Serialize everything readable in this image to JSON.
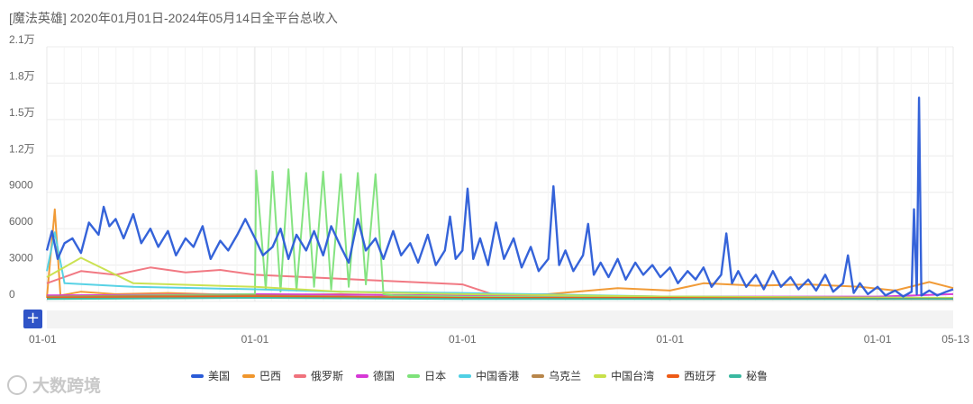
{
  "title": "[魔法英雄]  2020年01月01日-2024年05月14日全平台总收入",
  "watermark": "大数跨境",
  "zoom_button": "+",
  "chart_data": {
    "type": "line",
    "title": "[魔法英雄]  2020年01月01日-2024年05月14日全平台总收入",
    "x_range": [
      "2020-01-01",
      "2024-05-13"
    ],
    "x_ticks": [
      {
        "date": "2020-01-01",
        "label": "01-01"
      },
      {
        "date": "2021-01-01",
        "label": "01-01"
      },
      {
        "date": "2022-01-01",
        "label": "01-01"
      },
      {
        "date": "2023-01-01",
        "label": "01-01"
      },
      {
        "date": "2024-01-01",
        "label": "01-01"
      },
      {
        "date": "2024-05-13",
        "label": "05-13"
      }
    ],
    "y_ticks": [
      {
        "value": 0,
        "label": "0"
      },
      {
        "value": 3000,
        "label": "3000"
      },
      {
        "value": 6000,
        "label": "6000"
      },
      {
        "value": 9000,
        "label": "9000"
      },
      {
        "value": 12000,
        "label": "1.2万"
      },
      {
        "value": 15000,
        "label": "1.5万"
      },
      {
        "value": 18000,
        "label": "1.8万"
      },
      {
        "value": 21000,
        "label": "2.1万"
      }
    ],
    "ylim": [
      0,
      21000
    ],
    "grid": true,
    "legend_position": "bottom",
    "series": [
      {
        "name": "美国",
        "color": "#2a5bd7",
        "points": [
          [
            "2020-01-01",
            4200
          ],
          [
            "2020-01-10",
            5800
          ],
          [
            "2020-01-20",
            3500
          ],
          [
            "2020-02-01",
            4800
          ],
          [
            "2020-02-15",
            5200
          ],
          [
            "2020-03-01",
            4000
          ],
          [
            "2020-03-15",
            6500
          ],
          [
            "2020-04-01",
            5500
          ],
          [
            "2020-04-10",
            7800
          ],
          [
            "2020-04-20",
            6200
          ],
          [
            "2020-05-01",
            6800
          ],
          [
            "2020-05-15",
            5200
          ],
          [
            "2020-06-01",
            7200
          ],
          [
            "2020-06-15",
            4800
          ],
          [
            "2020-07-01",
            6000
          ],
          [
            "2020-07-15",
            4500
          ],
          [
            "2020-08-01",
            5800
          ],
          [
            "2020-08-15",
            3800
          ],
          [
            "2020-09-01",
            5200
          ],
          [
            "2020-09-15",
            4500
          ],
          [
            "2020-10-01",
            6200
          ],
          [
            "2020-10-15",
            3500
          ],
          [
            "2020-11-01",
            5000
          ],
          [
            "2020-11-15",
            4200
          ],
          [
            "2020-12-01",
            5500
          ],
          [
            "2020-12-15",
            6800
          ],
          [
            "2021-01-01",
            5200
          ],
          [
            "2021-01-15",
            3800
          ],
          [
            "2021-02-01",
            4500
          ],
          [
            "2021-02-15",
            6000
          ],
          [
            "2021-03-01",
            3500
          ],
          [
            "2021-03-15",
            5500
          ],
          [
            "2021-04-01",
            4200
          ],
          [
            "2021-04-15",
            5800
          ],
          [
            "2021-05-01",
            3800
          ],
          [
            "2021-05-15",
            6200
          ],
          [
            "2021-06-01",
            4500
          ],
          [
            "2021-06-15",
            3200
          ],
          [
            "2021-07-01",
            6800
          ],
          [
            "2021-07-15",
            4200
          ],
          [
            "2021-08-01",
            5200
          ],
          [
            "2021-08-15",
            3500
          ],
          [
            "2021-09-01",
            5800
          ],
          [
            "2021-09-15",
            3800
          ],
          [
            "2021-10-01",
            4800
          ],
          [
            "2021-10-15",
            3200
          ],
          [
            "2021-11-01",
            5500
          ],
          [
            "2021-11-15",
            3000
          ],
          [
            "2021-12-01",
            4200
          ],
          [
            "2021-12-10",
            7000
          ],
          [
            "2021-12-20",
            3500
          ],
          [
            "2022-01-01",
            4200
          ],
          [
            "2022-01-10",
            9300
          ],
          [
            "2022-01-20",
            3500
          ],
          [
            "2022-02-01",
            5200
          ],
          [
            "2022-02-15",
            3000
          ],
          [
            "2022-03-01",
            6500
          ],
          [
            "2022-03-15",
            3500
          ],
          [
            "2022-04-01",
            5200
          ],
          [
            "2022-04-15",
            2800
          ],
          [
            "2022-05-01",
            4500
          ],
          [
            "2022-05-15",
            2500
          ],
          [
            "2022-06-01",
            3500
          ],
          [
            "2022-06-10",
            9500
          ],
          [
            "2022-06-20",
            3000
          ],
          [
            "2022-07-01",
            4200
          ],
          [
            "2022-07-15",
            2500
          ],
          [
            "2022-08-01",
            3800
          ],
          [
            "2022-08-10",
            6400
          ],
          [
            "2022-08-20",
            2200
          ],
          [
            "2022-09-01",
            3200
          ],
          [
            "2022-09-15",
            2000
          ],
          [
            "2022-10-01",
            3500
          ],
          [
            "2022-10-15",
            1800
          ],
          [
            "2022-11-01",
            3200
          ],
          [
            "2022-11-15",
            2200
          ],
          [
            "2022-12-01",
            3000
          ],
          [
            "2022-12-15",
            2000
          ],
          [
            "2023-01-01",
            2800
          ],
          [
            "2023-01-15",
            1500
          ],
          [
            "2023-02-01",
            2500
          ],
          [
            "2023-02-15",
            1800
          ],
          [
            "2023-03-01",
            2800
          ],
          [
            "2023-03-15",
            1200
          ],
          [
            "2023-04-01",
            2200
          ],
          [
            "2023-04-10",
            5600
          ],
          [
            "2023-04-20",
            1500
          ],
          [
            "2023-05-01",
            2500
          ],
          [
            "2023-05-15",
            1200
          ],
          [
            "2023-06-01",
            2200
          ],
          [
            "2023-06-15",
            1000
          ],
          [
            "2023-07-01",
            2500
          ],
          [
            "2023-07-15",
            1200
          ],
          [
            "2023-08-01",
            2000
          ],
          [
            "2023-08-15",
            1000
          ],
          [
            "2023-09-01",
            1800
          ],
          [
            "2023-09-15",
            900
          ],
          [
            "2023-10-01",
            2200
          ],
          [
            "2023-10-15",
            800
          ],
          [
            "2023-11-01",
            1500
          ],
          [
            "2023-11-10",
            3800
          ],
          [
            "2023-11-20",
            700
          ],
          [
            "2023-12-01",
            1500
          ],
          [
            "2023-12-15",
            600
          ],
          [
            "2024-01-01",
            1200
          ],
          [
            "2024-01-15",
            500
          ],
          [
            "2024-02-01",
            900
          ],
          [
            "2024-02-15",
            400
          ],
          [
            "2024-03-01",
            800
          ],
          [
            "2024-03-05",
            7600
          ],
          [
            "2024-03-10",
            600
          ],
          [
            "2024-03-14",
            16800
          ],
          [
            "2024-03-18",
            500
          ],
          [
            "2024-04-01",
            900
          ],
          [
            "2024-04-15",
            500
          ],
          [
            "2024-05-01",
            800
          ],
          [
            "2024-05-13",
            1000
          ]
        ]
      },
      {
        "name": "巴西",
        "color": "#f0962c",
        "points": [
          [
            "2020-01-01",
            300
          ],
          [
            "2020-01-15",
            7600
          ],
          [
            "2020-01-25",
            500
          ],
          [
            "2020-03-01",
            800
          ],
          [
            "2020-05-01",
            600
          ],
          [
            "2020-08-01",
            700
          ],
          [
            "2021-01-01",
            500
          ],
          [
            "2021-06-01",
            600
          ],
          [
            "2022-01-01",
            400
          ],
          [
            "2022-06-01",
            600
          ],
          [
            "2022-10-01",
            1100
          ],
          [
            "2023-01-01",
            900
          ],
          [
            "2023-03-01",
            1500
          ],
          [
            "2023-06-01",
            1300
          ],
          [
            "2023-09-01",
            1400
          ],
          [
            "2023-12-01",
            1200
          ],
          [
            "2024-02-01",
            900
          ],
          [
            "2024-04-01",
            1600
          ],
          [
            "2024-05-13",
            1100
          ]
        ]
      },
      {
        "name": "俄罗斯",
        "color": "#f0727c",
        "points": [
          [
            "2020-01-01",
            1500
          ],
          [
            "2020-03-01",
            2500
          ],
          [
            "2020-05-01",
            2200
          ],
          [
            "2020-07-01",
            2800
          ],
          [
            "2020-09-01",
            2400
          ],
          [
            "2020-11-01",
            2600
          ],
          [
            "2021-01-01",
            2200
          ],
          [
            "2021-04-01",
            2000
          ],
          [
            "2021-07-01",
            1800
          ],
          [
            "2021-10-01",
            1600
          ],
          [
            "2022-01-01",
            1400
          ],
          [
            "2022-03-01",
            500
          ],
          [
            "2022-06-01",
            400
          ],
          [
            "2022-12-01",
            300
          ],
          [
            "2023-06-01",
            300
          ],
          [
            "2024-01-01",
            200
          ],
          [
            "2024-05-13",
            200
          ]
        ]
      },
      {
        "name": "德国",
        "color": "#d638d6",
        "points": [
          [
            "2020-01-01",
            500
          ],
          [
            "2021-01-01",
            600
          ],
          [
            "2022-01-01",
            500
          ],
          [
            "2023-01-01",
            400
          ],
          [
            "2024-01-01",
            400
          ],
          [
            "2024-05-13",
            600
          ]
        ]
      },
      {
        "name": "日本",
        "color": "#7ee27a",
        "points": [
          [
            "2020-01-01",
            400
          ],
          [
            "2021-01-01",
            600
          ],
          [
            "2021-01-03",
            10800
          ],
          [
            "2021-01-20",
            1000
          ],
          [
            "2021-02-01",
            10700
          ],
          [
            "2021-02-15",
            800
          ],
          [
            "2021-03-01",
            10900
          ],
          [
            "2021-03-15",
            900
          ],
          [
            "2021-04-01",
            10600
          ],
          [
            "2021-04-15",
            1200
          ],
          [
            "2021-05-01",
            10700
          ],
          [
            "2021-05-15",
            1000
          ],
          [
            "2021-06-01",
            10500
          ],
          [
            "2021-06-15",
            1200
          ],
          [
            "2021-07-01",
            10600
          ],
          [
            "2021-07-15",
            1400
          ],
          [
            "2021-08-01",
            10500
          ],
          [
            "2021-08-15",
            600
          ],
          [
            "2021-09-01",
            500
          ],
          [
            "2022-01-01",
            400
          ],
          [
            "2023-01-01",
            300
          ],
          [
            "2024-05-13",
            300
          ]
        ]
      },
      {
        "name": "中国香港",
        "color": "#4fd0e4",
        "points": [
          [
            "2020-01-01",
            2500
          ],
          [
            "2020-01-15",
            5700
          ],
          [
            "2020-02-01",
            1500
          ],
          [
            "2020-06-01",
            1200
          ],
          [
            "2021-01-01",
            1000
          ],
          [
            "2021-06-01",
            800
          ],
          [
            "2022-01-01",
            700
          ],
          [
            "2023-01-01",
            400
          ],
          [
            "2024-05-13",
            300
          ]
        ]
      },
      {
        "name": "乌克兰",
        "color": "#b8864a",
        "points": [
          [
            "2020-01-01",
            400
          ],
          [
            "2021-01-01",
            500
          ],
          [
            "2022-01-01",
            300
          ],
          [
            "2023-01-01",
            200
          ],
          [
            "2024-05-13",
            200
          ]
        ]
      },
      {
        "name": "中国台湾",
        "color": "#c8e04a",
        "points": [
          [
            "2020-01-01",
            2000
          ],
          [
            "2020-03-01",
            3600
          ],
          [
            "2020-06-01",
            1500
          ],
          [
            "2021-01-01",
            1200
          ],
          [
            "2021-06-01",
            800
          ],
          [
            "2022-01-01",
            600
          ],
          [
            "2023-01-01",
            400
          ],
          [
            "2024-05-13",
            300
          ]
        ]
      },
      {
        "name": "西班牙",
        "color": "#ee5a16",
        "points": [
          [
            "2020-01-01",
            300
          ],
          [
            "2021-01-01",
            400
          ],
          [
            "2022-01-01",
            300
          ],
          [
            "2023-01-01",
            300
          ],
          [
            "2024-05-13",
            200
          ]
        ]
      },
      {
        "name": "秘鲁",
        "color": "#39b8a0",
        "points": [
          [
            "2020-01-01",
            200
          ],
          [
            "2021-01-01",
            300
          ],
          [
            "2022-01-01",
            200
          ],
          [
            "2023-01-01",
            200
          ],
          [
            "2024-05-13",
            200
          ]
        ]
      }
    ]
  }
}
